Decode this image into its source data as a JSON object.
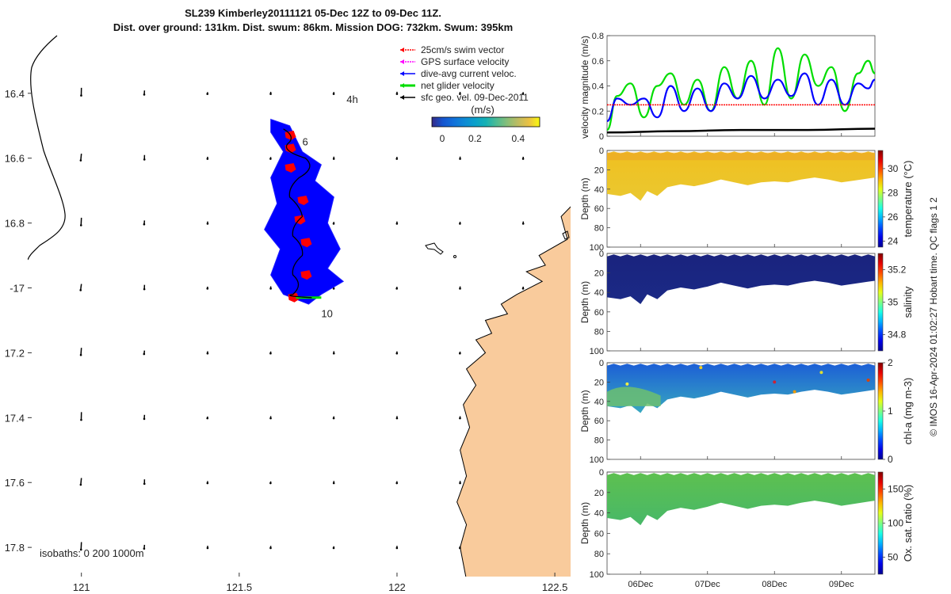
{
  "title_line1": "SL239 Kimberley20111121 05-Dec 12Z to 09-Dec 11Z.",
  "title_line2": "Dist. over ground: 131km. Dist. swum: 86km. Mission DOG: 732km. Swum: 395km",
  "colors": {
    "land": "#f9cb9c",
    "swim": "#ff0000",
    "gps": "#ff00ff",
    "dac": "#0000ff",
    "net": "#00dd00",
    "geo": "#000000",
    "track": "#000000"
  },
  "chart_data": [
    {
      "type": "map",
      "x_ticks": [
        121,
        121.5,
        122,
        122.5
      ],
      "x_tick_labels": [
        "121",
        "121.5",
        "122",
        "122.5"
      ],
      "y_ticks": [
        -16.4,
        -16.6,
        -16.8,
        -17.0,
        -17.2,
        -17.4,
        -17.6,
        -17.8
      ],
      "y_tick_labels": [
        "16.4",
        "16.6",
        "16.8",
        "-17",
        "17.2",
        "17.4",
        "17.6",
        "17.8"
      ],
      "xlim": [
        120.83,
        122.55
      ],
      "ylim": [
        -17.89,
        -16.21
      ],
      "isobath_label": "isobaths: 0   200  1000m",
      "colorbar_label": "(m/s)",
      "colorbar_ticks": [
        "0",
        "0.2",
        "0.4"
      ],
      "colorbar_range": [
        0,
        0.5
      ],
      "legend": [
        {
          "label": "25cm/s swim vector",
          "color_key": "swim"
        },
        {
          "label": "GPS surface velocity",
          "color_key": "gps"
        },
        {
          "label": "dive-avg current veloc.",
          "color_key": "dac"
        },
        {
          "label": "net glider velocity",
          "color_key": "net"
        },
        {
          "label": "sfc geo. vel. 09-Dec-2011",
          "color_key": "geo"
        }
      ],
      "time_annotations": [
        {
          "text": "4h",
          "lon": 121.84,
          "lat": -16.43
        },
        {
          "text": "6",
          "lon": 121.7,
          "lat": -16.56
        },
        {
          "text": "10",
          "lon": 121.76,
          "lat": -17.09
        }
      ],
      "track_waypoints": [
        [
          121.64,
          -16.51
        ],
        [
          121.66,
          -16.55
        ],
        [
          121.71,
          -16.6
        ],
        [
          121.69,
          -16.66
        ],
        [
          121.66,
          -16.72
        ],
        [
          121.7,
          -16.78
        ],
        [
          121.67,
          -16.84
        ],
        [
          121.7,
          -16.9
        ],
        [
          121.67,
          -16.96
        ],
        [
          121.67,
          -17.02
        ],
        [
          121.73,
          -17.03
        ]
      ],
      "geo_vector_lons": [
        121,
        121.2,
        121.4,
        121.6,
        121.8,
        122,
        122.2,
        122.4
      ],
      "geo_vector_lats": [
        -16.4,
        -16.6,
        -16.8,
        -17.0,
        -17.2,
        -17.4,
        -17.6,
        -17.8
      ]
    },
    {
      "type": "line",
      "ylabel": "velocity magnitude (m/s)",
      "ylim": [
        0,
        0.8
      ],
      "y_ticks": [
        0,
        0.2,
        0.4,
        0.6,
        0.8
      ],
      "y_tick_labels": [
        "0",
        "0.2",
        "0.4",
        "0.6",
        "0.8"
      ],
      "x_range_days": [
        5.5,
        9.5
      ],
      "series": [
        {
          "name": "net glider velocity",
          "color_key": "net",
          "x": [
            5.5,
            5.65,
            5.85,
            6.05,
            6.25,
            6.45,
            6.65,
            6.85,
            7.05,
            7.25,
            7.45,
            7.65,
            7.85,
            8.05,
            8.25,
            8.45,
            8.65,
            8.85,
            9.05,
            9.25,
            9.4,
            9.5
          ],
          "values": [
            0.05,
            0.32,
            0.42,
            0.15,
            0.4,
            0.5,
            0.25,
            0.45,
            0.2,
            0.55,
            0.3,
            0.6,
            0.25,
            0.7,
            0.3,
            0.65,
            0.4,
            0.55,
            0.2,
            0.5,
            0.6,
            0.5
          ]
        },
        {
          "name": "dive-avg current veloc.",
          "color_key": "dac",
          "x": [
            5.5,
            5.65,
            5.85,
            6.05,
            6.25,
            6.45,
            6.65,
            6.85,
            7.05,
            7.25,
            7.45,
            7.65,
            7.85,
            8.05,
            8.25,
            8.45,
            8.65,
            8.85,
            9.05,
            9.25,
            9.4,
            9.5
          ],
          "values": [
            0.12,
            0.3,
            0.25,
            0.3,
            0.15,
            0.4,
            0.2,
            0.38,
            0.2,
            0.42,
            0.3,
            0.48,
            0.3,
            0.45,
            0.32,
            0.5,
            0.25,
            0.45,
            0.25,
            0.42,
            0.38,
            0.45
          ]
        },
        {
          "name": "25cm/s swim vector",
          "color_key": "swim",
          "x": [
            5.5,
            9.5
          ],
          "values": [
            0.25,
            0.25
          ]
        },
        {
          "name": "sfc geo. vel. 09-Dec-2011",
          "color_key": "geo",
          "x": [
            5.5,
            6.5,
            7.5,
            8.5,
            9.5
          ],
          "values": [
            0.03,
            0.04,
            0.05,
            0.05,
            0.06
          ]
        }
      ]
    },
    {
      "type": "heatmap",
      "ylabel": "Depth (m)",
      "ylim": [
        0,
        100
      ],
      "y_ticks": [
        0,
        20,
        40,
        60,
        80,
        100
      ],
      "y_tick_labels": [
        "0",
        "20",
        "40",
        "60",
        "80",
        "100"
      ],
      "colorbar_label": "temperature (°C)",
      "colorbar_ticks": [
        24,
        26,
        28,
        30
      ],
      "colorbar_tick_labels": [
        "24",
        "26",
        "28",
        "30"
      ],
      "colorbar_range": [
        23.5,
        31.5
      ],
      "colormap": "parula-jet",
      "surface_value": 29.3,
      "bottom_value": 28.8
    },
    {
      "type": "heatmap",
      "ylabel": "Depth (m)",
      "ylim": [
        0,
        100
      ],
      "y_ticks": [
        0,
        20,
        40,
        60,
        80,
        100
      ],
      "y_tick_labels": [
        "0",
        "20",
        "40",
        "60",
        "80",
        "100"
      ],
      "colorbar_label": "salinity",
      "colorbar_ticks": [
        34.8,
        35,
        35.2
      ],
      "colorbar_tick_labels": [
        "34.8",
        "35",
        "35.2"
      ],
      "colorbar_range": [
        34.7,
        35.3
      ],
      "colormap": "parula-jet",
      "surface_value": 34.71,
      "bottom_value": 34.72
    },
    {
      "type": "heatmap",
      "ylabel": "Depth (m)",
      "ylim": [
        0,
        100
      ],
      "y_ticks": [
        0,
        20,
        40,
        60,
        80,
        100
      ],
      "y_tick_labels": [
        "0",
        "20",
        "40",
        "60",
        "80",
        "100"
      ],
      "colorbar_label": "chl-a (mg m-3)",
      "colorbar_ticks": [
        0,
        1,
        2
      ],
      "colorbar_tick_labels": [
        "0",
        "1",
        "2"
      ],
      "colorbar_range": [
        0,
        2
      ],
      "colormap": "parula-jet",
      "surface_value": 0.45,
      "bottom_value": 1.1
    },
    {
      "type": "heatmap",
      "ylabel": "Depth (m)",
      "ylim": [
        0,
        100
      ],
      "y_ticks": [
        0,
        20,
        40,
        60,
        80,
        100
      ],
      "y_tick_labels": [
        "0",
        "20",
        "40",
        "60",
        "80",
        "100"
      ],
      "colorbar_label": "Ox. sat. ratio (%)",
      "colorbar_ticks": [
        50,
        100,
        150
      ],
      "colorbar_tick_labels": [
        "50",
        "100",
        "150"
      ],
      "colorbar_range": [
        25,
        175
      ],
      "colormap": "parula-jet",
      "surface_value": 118,
      "bottom_value": 112
    }
  ],
  "time_axis": {
    "ticks_days": [
      6,
      7,
      8,
      9
    ],
    "labels": [
      "06Dec",
      "07Dec",
      "08Dec",
      "09Dec"
    ]
  },
  "side_label": "© IMOS 16-Apr-2024 01:02:27 Hobart time. QC flags 1  2"
}
